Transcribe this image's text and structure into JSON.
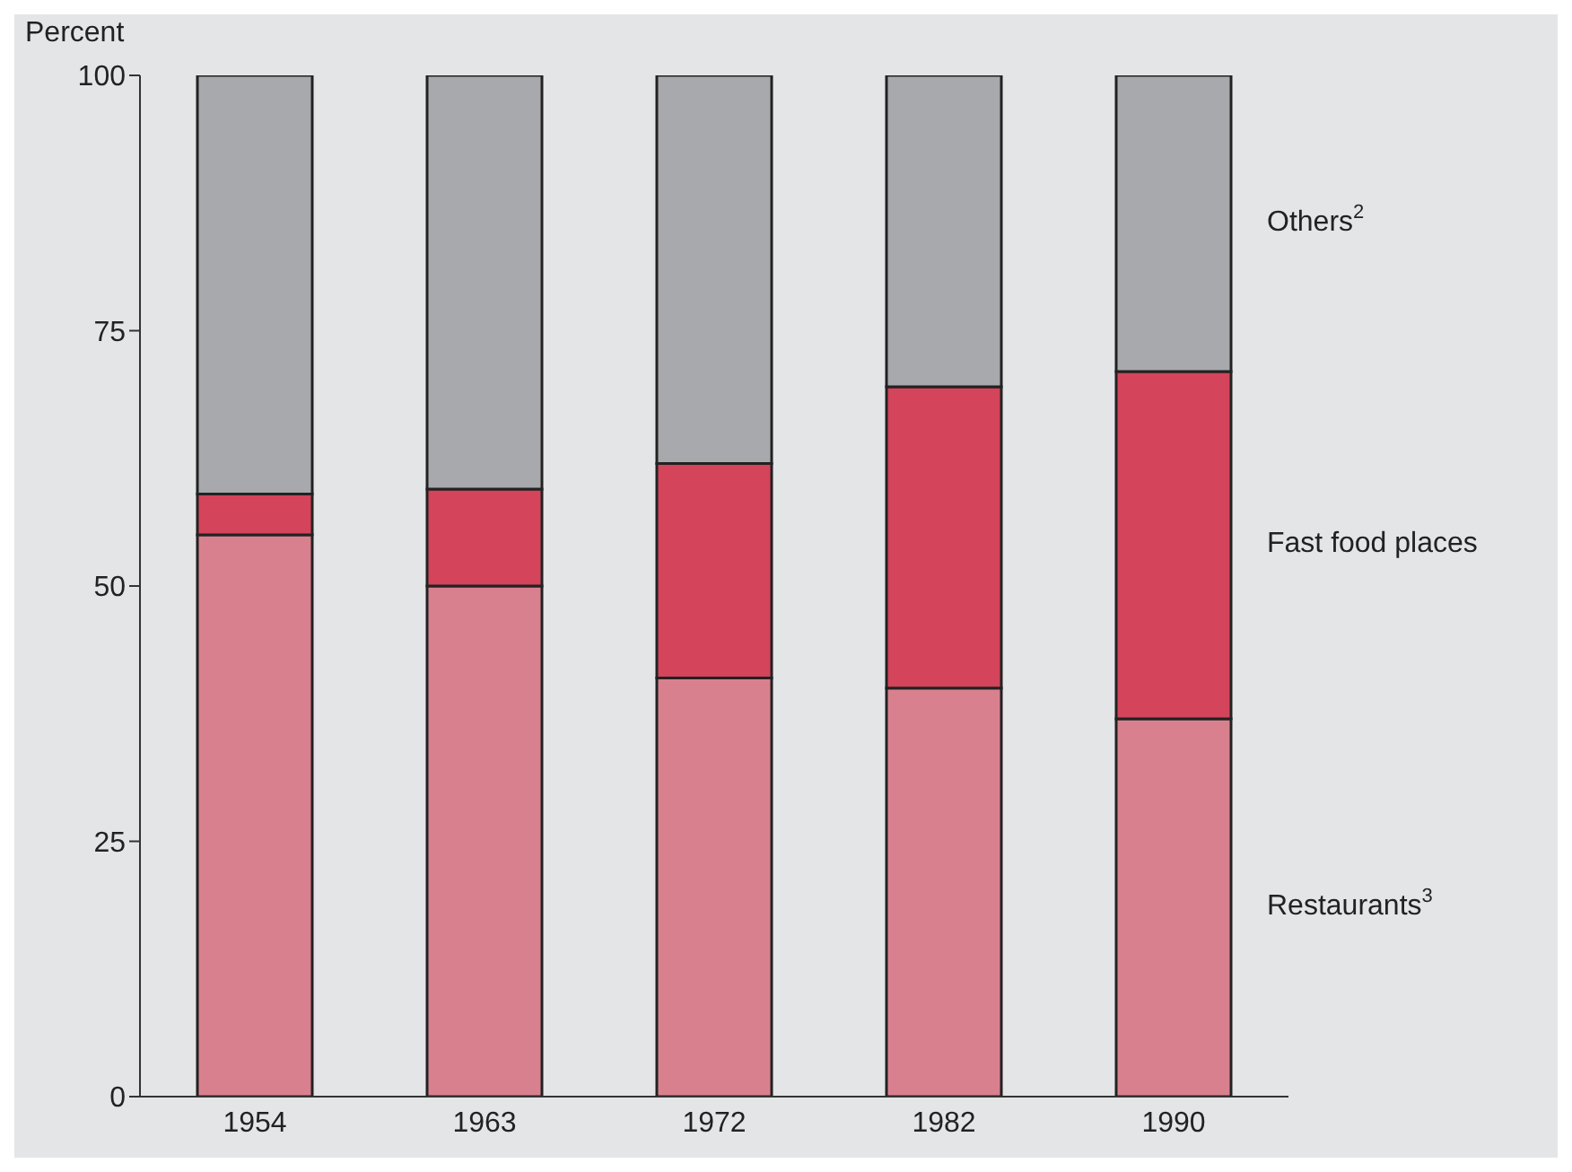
{
  "chart_data": {
    "type": "bar",
    "stacked": true,
    "ylabel": "Percent",
    "categories": [
      "1954",
      "1963",
      "1972",
      "1982",
      "1990"
    ],
    "series": [
      {
        "name": "Restaurants$^{3}$",
        "color": "#d9808f",
        "values": [
          55,
          50,
          41,
          40,
          37
        ]
      },
      {
        "name": "Fast food places",
        "color": "#d4445a",
        "values": [
          4,
          9.5,
          21,
          29.5,
          34
        ]
      },
      {
        "name": "Others$^{2}$",
        "color": "#a8a9ad",
        "values": [
          41,
          40.5,
          38,
          30.5,
          29
        ]
      }
    ],
    "ylim": [
      0,
      100
    ],
    "yticks": [
      0,
      25,
      50,
      75,
      100
    ],
    "grid": false,
    "legend": false
  }
}
